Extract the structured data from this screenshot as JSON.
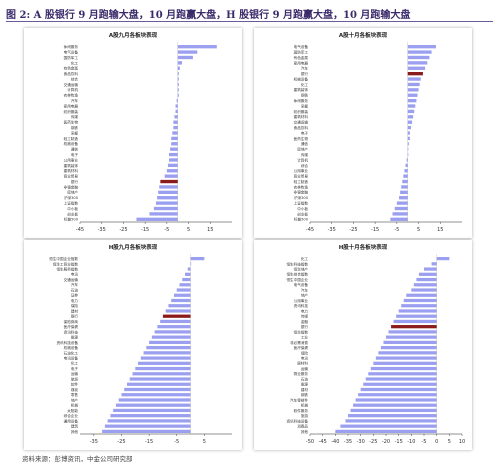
{
  "figure": {
    "title": "图 2: A 股银行 9 月跑输大盘，10 月跑赢大盘，H 股银行 9 月跑赢大盘，10 月跑输大盘",
    "source": "资料来源：彭博资讯，中金公司研究部"
  },
  "colors": {
    "bar": "#9b9ff0",
    "highlight": "#8b1a1a",
    "axis": "#222222",
    "title_text": "#3a2a6a"
  },
  "chart_data": [
    {
      "type": "bar",
      "orientation": "horizontal",
      "title": "A股九月各板块表现",
      "xlim": [
        -45,
        25
      ],
      "xticks": [
        -45,
        -35,
        -25,
        -15,
        -5,
        5,
        15
      ],
      "highlight_category": "银行",
      "categories": [
        "休闲服务",
        "电气设备",
        "国防军工",
        "化工",
        "有色金属",
        "食品饮料",
        "综合",
        "交通运输",
        "计算机",
        "农林牧渔",
        "汽车",
        "家用电器",
        "纺织服装",
        "传媒",
        "医药生物",
        "钢铁",
        "采掘",
        "轻工制造",
        "机械设备",
        "通信",
        "电子",
        "公用事业",
        "建筑装饰",
        "建筑材料",
        "商业贸易",
        "银行",
        "非银金融",
        "房地产",
        "沪深300",
        "上证指数",
        "中小板",
        "创业板",
        "标普500"
      ],
      "values": [
        18,
        9,
        7,
        2,
        1,
        0.5,
        0.5,
        0.5,
        0.5,
        0.5,
        -0.5,
        -1,
        -1,
        -1.5,
        -2,
        -2,
        -2.5,
        -3,
        -3,
        -3.5,
        -4,
        -4,
        -4.5,
        -5,
        -6,
        -8,
        -8.5,
        -9,
        -9.5,
        -10,
        -11,
        -13,
        -19
      ]
    },
    {
      "type": "bar",
      "orientation": "horizontal",
      "title": "A股十月各板块表现",
      "xlim": [
        -45,
        25
      ],
      "xticks": [
        -45,
        -35,
        -25,
        -15,
        -5,
        5,
        15
      ],
      "highlight_category": "银行",
      "categories": [
        "电气设备",
        "国防军工",
        "有色金属",
        "家用电器",
        "汽车",
        "银行",
        "机械设备",
        "化工",
        "建筑装饰",
        "钢铁",
        "休闲服务",
        "采掘",
        "纺织服装",
        "建筑材料",
        "交通运输",
        "食品饮料",
        "电子",
        "医药生物",
        "通信",
        "房地产",
        "传媒",
        "计算机",
        "综合",
        "公用事业",
        "商业贸易",
        "轻工制造",
        "农林牧渔",
        "非银金融",
        "沪深300",
        "上证指数",
        "中小板",
        "创业板",
        "标普500"
      ],
      "values": [
        13,
        11,
        10,
        9,
        8,
        7,
        6,
        5.5,
        5,
        4.5,
        4,
        3.5,
        3,
        2.5,
        2,
        1.5,
        1,
        1,
        0.5,
        0,
        0,
        -0.5,
        -1,
        -1.5,
        -2,
        -2.5,
        -3,
        -3.5,
        -4,
        -5,
        -6,
        -7,
        -8
      ]
    },
    {
      "type": "bar",
      "orientation": "horizontal",
      "title": "H股九月各板块表现",
      "xlim": [
        -40,
        15
      ],
      "xticks": [
        -35,
        -25,
        -15,
        -5,
        5
      ],
      "highlight_category": "银行",
      "categories": [
        "恒生中国企业指数",
        "恒生工商业指数",
        "恒生服务指数",
        "电讯",
        "交通运输",
        "汽车",
        "石油",
        "证券",
        "电力",
        "保险",
        "建材",
        "银行",
        "保险券商",
        "医疗保健",
        "资讯科技",
        "能源",
        "资讯科技设备",
        "机械设备",
        "石油化工",
        "电讯设备",
        "化工",
        "电子",
        "运输",
        "旅游",
        "软件",
        "煤炭",
        "零售",
        "地产",
        "机械",
        "太阳能",
        "综合企业",
        "通用设备",
        "建筑",
        "其他"
      ],
      "values": [
        5,
        0,
        -1,
        -2,
        -3,
        -4,
        -5,
        -6,
        -7,
        -8,
        -9,
        -10,
        -11,
        -12,
        -13,
        -14,
        -15,
        -16,
        -17,
        -18,
        -19,
        -20,
        -21,
        -22,
        -23,
        -24,
        -25,
        -26,
        -27,
        -28,
        -29,
        -30,
        -31,
        -32
      ]
    },
    {
      "type": "bar",
      "orientation": "horizontal",
      "title": "H股十月各板块表现",
      "xlim": [
        -50,
        10
      ],
      "xticks": [
        -50,
        -45,
        -40,
        -35,
        -30,
        -25,
        -20,
        -15,
        -10,
        -5,
        0,
        5,
        10
      ],
      "highlight_category": "银行",
      "categories": [
        "化工",
        "恒生科技指数",
        "恒生地产",
        "恒生综合指数",
        "恒生中国企业",
        "电气设备",
        "汽车",
        "地产",
        "公用事业",
        "资讯科技",
        "电力",
        "传媒",
        "金融",
        "银行",
        "恒生指数",
        "工业",
        "非必需消费",
        "医疗保健",
        "保险",
        "电讯",
        "原材料",
        "运输",
        "物业服务",
        "石油",
        "能源",
        "建材",
        "钢铁",
        "汽车零部件",
        "机械",
        "软件服务",
        "旅游",
        "资讯科技设备",
        "消费品",
        "其他"
      ],
      "values": [
        5,
        -2,
        -5,
        -7,
        -8,
        -9,
        -10,
        -12,
        -13,
        -14,
        -15,
        -16,
        -17,
        -18,
        -19,
        -20,
        -21,
        -22,
        -23,
        -24,
        -25,
        -26,
        -27,
        -28,
        -29,
        -30,
        -31,
        -32,
        -33,
        -34,
        -35,
        -36,
        -38,
        -40
      ]
    }
  ]
}
